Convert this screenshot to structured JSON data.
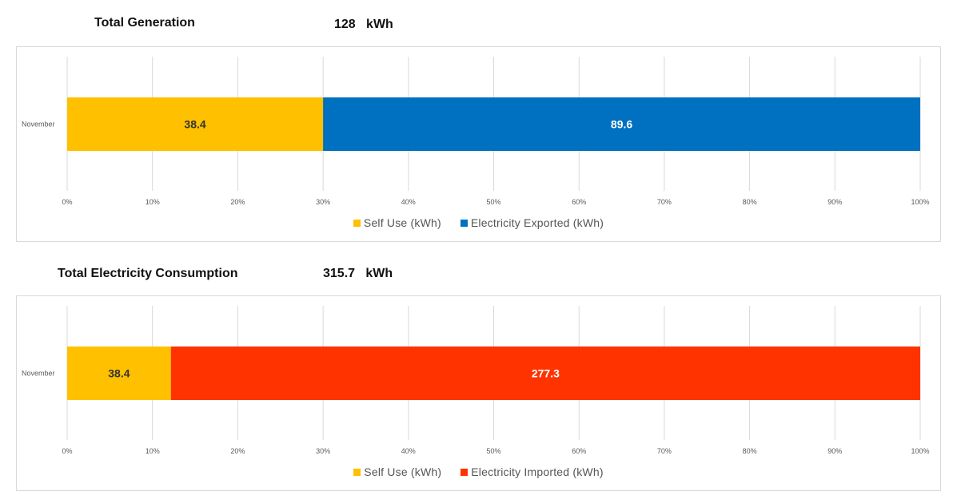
{
  "headings": [
    {
      "title": "Total Generation",
      "value": "128",
      "unit": "kWh"
    },
    {
      "title": "Total Electricity Consumption",
      "value": "315.7",
      "unit": "kWh"
    }
  ],
  "chart_data": [
    {
      "type": "bar",
      "orientation": "horizontal",
      "stacked": "percent",
      "title": "Total Generation",
      "categories": [
        "November"
      ],
      "xlim": [
        0,
        100
      ],
      "x_ticks": [
        "0%",
        "10%",
        "20%",
        "30%",
        "40%",
        "50%",
        "60%",
        "70%",
        "80%",
        "90%",
        "100%"
      ],
      "grid": true,
      "legend": "bottom",
      "series": [
        {
          "name": "Self Use (kWh)",
          "values": [
            38.4
          ],
          "label": "38.4",
          "color": "#FFC000",
          "label_color": "#333333"
        },
        {
          "name": "Electricity Exported (kWh)",
          "values": [
            89.6
          ],
          "label": "89.6",
          "color": "#0070C0",
          "label_color": "#FFFFFF"
        }
      ]
    },
    {
      "type": "bar",
      "orientation": "horizontal",
      "stacked": "percent",
      "title": "Total Electricity Consumption",
      "categories": [
        "November"
      ],
      "xlim": [
        0,
        100
      ],
      "x_ticks": [
        "0%",
        "10%",
        "20%",
        "30%",
        "40%",
        "50%",
        "60%",
        "70%",
        "80%",
        "90%",
        "100%"
      ],
      "grid": true,
      "legend": "bottom",
      "series": [
        {
          "name": "Self Use (kWh)",
          "values": [
            38.4
          ],
          "label": "38.4",
          "color": "#FFC000",
          "label_color": "#333333"
        },
        {
          "name": "Electricity Imported (kWh)",
          "values": [
            277.3
          ],
          "label": "277.3",
          "color": "#FF3300",
          "label_color": "#FFFFFF"
        }
      ]
    }
  ]
}
